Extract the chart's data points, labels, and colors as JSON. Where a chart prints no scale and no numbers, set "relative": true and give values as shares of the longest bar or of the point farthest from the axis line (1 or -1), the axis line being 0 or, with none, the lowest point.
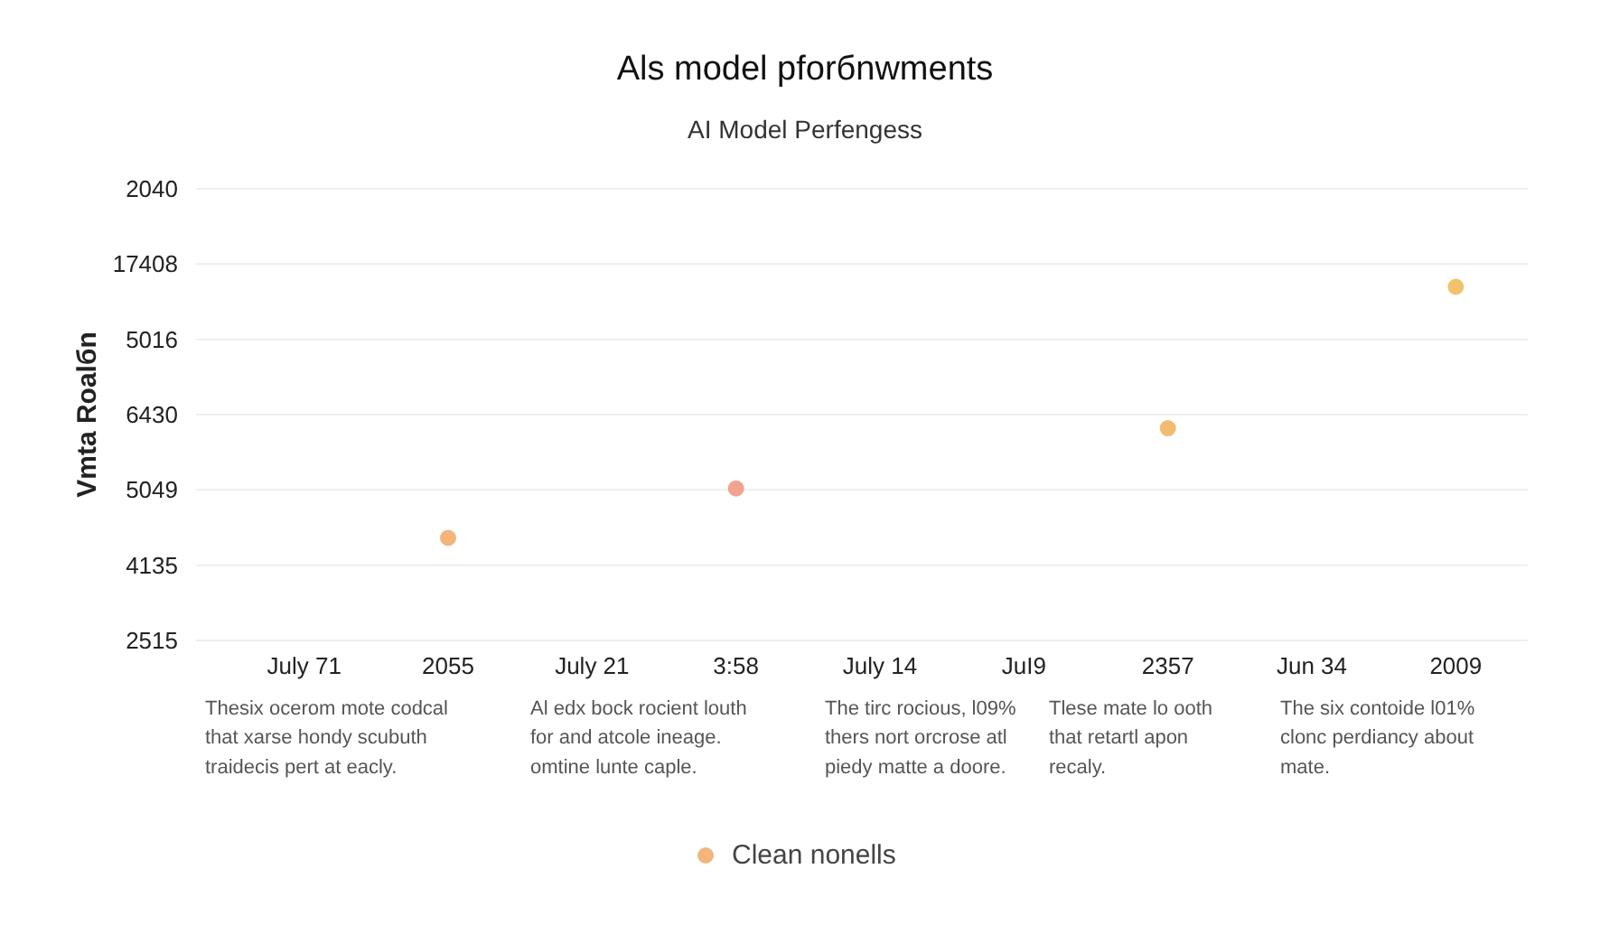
{
  "chart_data": {
    "type": "scatter",
    "title": "Als model pforбnwments",
    "subtitle": "AI Model Perfengess",
    "ylabel": "Vmta Roalбn",
    "relative": true,
    "categories": [
      "July 71",
      "2055",
      "July 21",
      "3:58",
      "July 14",
      "JuI9",
      "2357",
      "Jun 34",
      "2009"
    ],
    "series": [
      {
        "name": "Clean nonells",
        "values": [
          null,
          0.29,
          null,
          0.43,
          null,
          null,
          0.6,
          null,
          1
        ],
        "colors": [
          null,
          "#f3b57c",
          null,
          "#f2a390",
          null,
          null,
          "#f2bb72",
          null,
          "#f2c36c"
        ]
      }
    ],
    "marker": "circle",
    "grid": "y",
    "legend": "bottom",
    "annotations": [
      "2040",
      "17408",
      "5016",
      "6430",
      "5049",
      "4135",
      "2515",
      "Thesix ocerom mote codcal\nthat xarse hondy scubuth\ntraidecis pert at eacly.",
      "Al edx bock rocient louth\nfor and atcole ineage.\nomtine lunte caple.",
      "The tirc rocious, l09%\nthers nort orcrose atl\npiedy matte a doore.",
      "Tlese mate lo ooth\nthat retartl apon\nrecaly.",
      "The six contoide l01%\nclonc perdiancy about\nmate."
    ]
  }
}
